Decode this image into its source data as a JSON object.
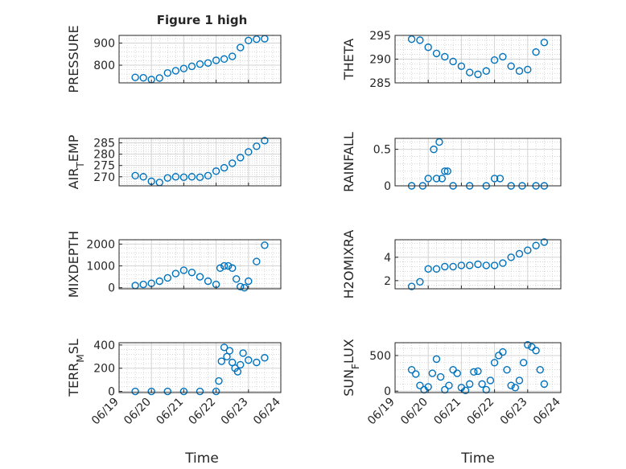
{
  "chart_data": {
    "title": "Figure 1 high",
    "xlabel": "Time",
    "x_tick_labels": [
      "06/19",
      "06/20",
      "06/21",
      "06/22",
      "06/23",
      "06/24"
    ],
    "marker": "open-circle",
    "marker_color": "#0072BD",
    "grid": true,
    "subplots": [
      {
        "type": "scatter",
        "ylabel": "PRESSURE",
        "ylim": [
          720,
          935
        ],
        "yticks": [
          800,
          900
        ],
        "x": [
          "06/19 12:00",
          "06/19 18:00",
          "06/20 00:00",
          "06/20 06:00",
          "06/20 12:00",
          "06/20 18:00",
          "06/21 00:00",
          "06/21 06:00",
          "06/21 12:00",
          "06/21 18:00",
          "06/22 00:00",
          "06/22 06:00",
          "06/22 12:00",
          "06/22 18:00",
          "06/23 00:00",
          "06/23 06:00",
          "06/23 12:00"
        ],
        "values": [
          745,
          743,
          735,
          742,
          765,
          775,
          785,
          795,
          805,
          810,
          822,
          828,
          840,
          880,
          912,
          918,
          920
        ]
      },
      {
        "type": "scatter",
        "ylabel": "THETA",
        "ylim": [
          285,
          295
        ],
        "yticks": [
          285,
          290,
          295
        ],
        "x": [
          "06/19 12:00",
          "06/19 18:00",
          "06/20 00:00",
          "06/20 06:00",
          "06/20 12:00",
          "06/20 18:00",
          "06/21 00:00",
          "06/21 06:00",
          "06/21 12:00",
          "06/21 18:00",
          "06/22 00:00",
          "06/22 06:00",
          "06/22 12:00",
          "06/22 18:00",
          "06/23 00:00",
          "06/23 06:00",
          "06/23 12:00"
        ],
        "values": [
          294.2,
          294,
          292.5,
          291.2,
          290.5,
          289.5,
          288.5,
          287.2,
          286.8,
          287.5,
          289.8,
          290.5,
          288.5,
          287.5,
          287.8,
          291.5,
          293.5
        ]
      },
      {
        "type": "scatter",
        "ylabel": "AIR_TEMP",
        "ylim": [
          266,
          287
        ],
        "yticks": [
          270,
          275,
          280,
          285
        ],
        "x": [
          "06/19 12:00",
          "06/19 18:00",
          "06/20 00:00",
          "06/20 06:00",
          "06/20 12:00",
          "06/20 18:00",
          "06/21 00:00",
          "06/21 06:00",
          "06/21 12:00",
          "06/21 18:00",
          "06/22 00:00",
          "06/22 06:00",
          "06/22 12:00",
          "06/22 18:00",
          "06/23 00:00",
          "06/23 06:00",
          "06/23 12:00"
        ],
        "values": [
          270.5,
          270,
          268,
          267.5,
          269.5,
          270,
          269.8,
          270,
          269.8,
          270.5,
          272.5,
          274,
          276,
          278.5,
          281,
          283.5,
          286
        ]
      },
      {
        "type": "scatter",
        "ylabel": "RAINFALL",
        "ylim": [
          0,
          0.65
        ],
        "yticks": [
          0,
          0.5
        ],
        "x": [
          "06/19 12:00",
          "06/19 20:00",
          "06/20 00:00",
          "06/20 04:00",
          "06/20 06:00",
          "06/20 08:00",
          "06/20 10:00",
          "06/20 12:00",
          "06/20 14:00",
          "06/20 18:00",
          "06/21 06:00",
          "06/21 18:00",
          "06/22 00:00",
          "06/22 04:00",
          "06/22 12:00",
          "06/22 20:00",
          "06/23 06:00",
          "06/23 12:00"
        ],
        "values": [
          0,
          0,
          0.1,
          0.5,
          0.1,
          0.6,
          0.1,
          0.2,
          0.2,
          0,
          0,
          0,
          0.1,
          0.1,
          0,
          0,
          0,
          0
        ]
      },
      {
        "type": "scatter",
        "ylabel": "MIXDEPTH",
        "ylim": [
          -50,
          2200
        ],
        "yticks": [
          0,
          1000,
          2000
        ],
        "x": [
          "06/19 12:00",
          "06/19 18:00",
          "06/20 00:00",
          "06/20 06:00",
          "06/20 12:00",
          "06/20 18:00",
          "06/21 00:00",
          "06/21 06:00",
          "06/21 12:00",
          "06/21 18:00",
          "06/22 00:00",
          "06/22 03:00",
          "06/22 06:00",
          "06/22 09:00",
          "06/22 12:00",
          "06/22 15:00",
          "06/22 18:00",
          "06/22 21:00",
          "06/23 00:00",
          "06/23 06:00",
          "06/23 12:00"
        ],
        "values": [
          100,
          150,
          200,
          300,
          450,
          650,
          800,
          700,
          500,
          300,
          150,
          900,
          1000,
          1000,
          900,
          400,
          50,
          0,
          300,
          1200,
          1950
        ]
      },
      {
        "type": "scatter",
        "ylabel": "H2OMIXRA",
        "ylim": [
          1.3,
          5.5
        ],
        "yticks": [
          2,
          4
        ],
        "x": [
          "06/19 12:00",
          "06/19 18:00",
          "06/20 00:00",
          "06/20 06:00",
          "06/20 12:00",
          "06/20 18:00",
          "06/21 00:00",
          "06/21 06:00",
          "06/21 12:00",
          "06/21 18:00",
          "06/22 00:00",
          "06/22 06:00",
          "06/22 12:00",
          "06/22 18:00",
          "06/23 00:00",
          "06/23 06:00",
          "06/23 12:00"
        ],
        "values": [
          1.5,
          1.9,
          3.0,
          3.0,
          3.2,
          3.2,
          3.3,
          3.3,
          3.4,
          3.3,
          3.3,
          3.5,
          4.0,
          4.3,
          4.6,
          5.0,
          5.3
        ]
      },
      {
        "type": "scatter",
        "ylabel": "TERR_MSL",
        "ylim": [
          -10,
          420
        ],
        "yticks": [
          0,
          200,
          400
        ],
        "x": [
          "06/19 12:00",
          "06/20 00:00",
          "06/20 12:00",
          "06/21 00:00",
          "06/21 12:00",
          "06/22 00:00",
          "06/22 02:00",
          "06/22 04:00",
          "06/22 06:00",
          "06/22 08:00",
          "06/22 10:00",
          "06/22 12:00",
          "06/22 14:00",
          "06/22 16:00",
          "06/22 18:00",
          "06/22 20:00",
          "06/23 00:00",
          "06/23 06:00",
          "06/23 12:00"
        ],
        "values": [
          0,
          0,
          0,
          0,
          0,
          0,
          90,
          260,
          380,
          300,
          350,
          250,
          200,
          170,
          230,
          330,
          270,
          250,
          290
        ]
      },
      {
        "type": "scatter",
        "ylabel": "SUN_FLUX",
        "ylim": [
          -20,
          680
        ],
        "yticks": [
          0,
          500
        ],
        "x": [
          "06/19 12:00",
          "06/19 15:00",
          "06/19 18:00",
          "06/19 21:00",
          "06/20 00:00",
          "06/20 03:00",
          "06/20 06:00",
          "06/20 09:00",
          "06/20 12:00",
          "06/20 15:00",
          "06/20 18:00",
          "06/20 21:00",
          "06/21 00:00",
          "06/21 03:00",
          "06/21 06:00",
          "06/21 09:00",
          "06/21 12:00",
          "06/21 15:00",
          "06/21 18:00",
          "06/21 21:00",
          "06/22 00:00",
          "06/22 03:00",
          "06/22 06:00",
          "06/22 09:00",
          "06/22 12:00",
          "06/22 15:00",
          "06/22 18:00",
          "06/22 21:00",
          "06/23 00:00",
          "06/23 03:00",
          "06/23 06:00",
          "06/23 09:00",
          "06/23 12:00"
        ],
        "values": [
          300,
          240,
          80,
          20,
          60,
          250,
          450,
          200,
          20,
          80,
          300,
          250,
          50,
          10,
          100,
          270,
          280,
          100,
          20,
          150,
          400,
          500,
          550,
          300,
          80,
          50,
          150,
          400,
          650,
          620,
          570,
          300,
          100
        ]
      }
    ]
  }
}
